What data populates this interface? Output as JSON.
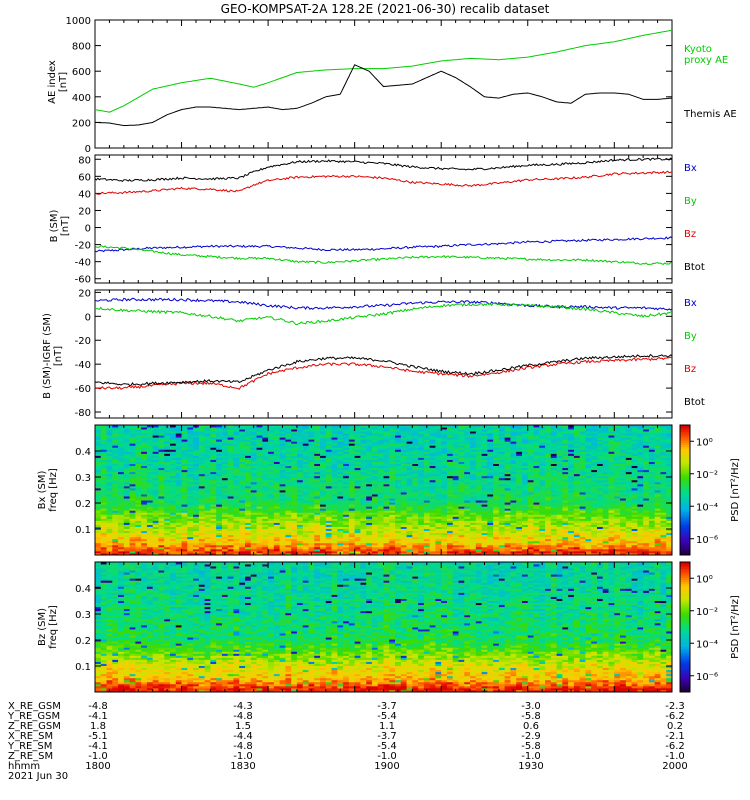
{
  "figure_title": "GEO-KOMPSAT-2A 128.2E (2021-06-30) recalib dataset",
  "colors": {
    "black": "#000000",
    "green": "#00cc00",
    "red": "#e00000",
    "blue": "#0000cc"
  },
  "chart_data": [
    {
      "type": "line",
      "panel": "ae-index",
      "ylabel": "AE index [nT]",
      "ylim": [
        0,
        1000
      ],
      "yticks": [
        0,
        200,
        400,
        600,
        800,
        1000
      ],
      "x_minutes_since_1800": true,
      "series": [
        {
          "name": "Kyoto proxy AE",
          "color": "#00cc00",
          "x": [
            0,
            5,
            10,
            20,
            30,
            40,
            50,
            55,
            60,
            70,
            80,
            90,
            100,
            110,
            120,
            130,
            140,
            150,
            160,
            170,
            180,
            190,
            200
          ],
          "y": [
            300,
            280,
            330,
            460,
            510,
            545,
            500,
            475,
            510,
            590,
            610,
            620,
            620,
            640,
            680,
            700,
            690,
            710,
            750,
            800,
            830,
            880,
            920
          ]
        },
        {
          "name": "Themis AE",
          "color": "#000000",
          "x": [
            0,
            5,
            10,
            15,
            20,
            25,
            30,
            35,
            40,
            45,
            50,
            60,
            65,
            70,
            75,
            80,
            85,
            90,
            95,
            100,
            105,
            110,
            115,
            120,
            125,
            130,
            135,
            140,
            145,
            150,
            155,
            160,
            165,
            170,
            175,
            180,
            185,
            190,
            195,
            200
          ],
          "y": [
            200,
            195,
            175,
            180,
            200,
            260,
            300,
            320,
            320,
            310,
            300,
            320,
            300,
            310,
            350,
            400,
            420,
            650,
            600,
            480,
            490,
            500,
            550,
            600,
            550,
            480,
            400,
            390,
            420,
            430,
            400,
            360,
            350,
            420,
            430,
            430,
            420,
            380,
            380,
            390
          ]
        }
      ]
    },
    {
      "type": "line",
      "panel": "b-sm",
      "ylabel": "B (SM) [nT]",
      "ylim": [
        -65,
        85
      ],
      "yticks": [
        -60,
        -40,
        -20,
        0,
        20,
        40,
        60,
        80
      ],
      "series": [
        {
          "name": "Bx",
          "color": "#0000cc",
          "x": [
            0,
            10,
            20,
            30,
            40,
            50,
            60,
            70,
            80,
            90,
            100,
            110,
            120,
            130,
            140,
            150,
            160,
            170,
            180,
            190,
            200
          ],
          "y": [
            -28,
            -26,
            -24,
            -23,
            -22,
            -22,
            -22,
            -24,
            -26,
            -26,
            -25,
            -23,
            -22,
            -20,
            -19,
            -17,
            -16,
            -15,
            -14,
            -13,
            -12
          ]
        },
        {
          "name": "By",
          "color": "#00cc00",
          "x": [
            0,
            10,
            20,
            30,
            40,
            50,
            60,
            70,
            80,
            90,
            100,
            110,
            120,
            130,
            140,
            150,
            160,
            170,
            180,
            190,
            200
          ],
          "y": [
            -22,
            -24,
            -28,
            -32,
            -34,
            -36,
            -36,
            -40,
            -41,
            -39,
            -37,
            -35,
            -34,
            -35,
            -36,
            -37,
            -38,
            -38,
            -40,
            -42,
            -42
          ]
        },
        {
          "name": "Bz",
          "color": "#e00000",
          "x": [
            0,
            10,
            20,
            30,
            40,
            50,
            55,
            60,
            70,
            80,
            90,
            100,
            110,
            120,
            130,
            140,
            150,
            160,
            170,
            180,
            190,
            200
          ],
          "y": [
            40,
            41,
            43,
            46,
            45,
            42,
            50,
            55,
            59,
            60,
            60,
            58,
            53,
            51,
            49,
            52,
            56,
            57,
            59,
            63,
            64,
            65
          ]
        },
        {
          "name": "Btot",
          "color": "#000000",
          "x": [
            0,
            10,
            20,
            30,
            40,
            50,
            55,
            60,
            70,
            80,
            90,
            100,
            110,
            120,
            130,
            140,
            150,
            160,
            170,
            180,
            190,
            200
          ],
          "y": [
            57,
            55,
            56,
            58,
            57,
            58,
            65,
            71,
            77,
            78,
            77,
            75,
            71,
            69,
            68,
            70,
            73,
            74,
            76,
            79,
            80,
            80
          ]
        }
      ]
    },
    {
      "type": "line",
      "panel": "b-sm-igrf",
      "ylabel": "B (SM)-IGRF (SM) [nT]",
      "ylim": [
        -85,
        22
      ],
      "yticks": [
        -80,
        -60,
        -40,
        -20,
        0,
        20
      ],
      "series": [
        {
          "name": "Bx",
          "color": "#0000cc",
          "x": [
            0,
            10,
            20,
            30,
            40,
            50,
            60,
            70,
            80,
            90,
            100,
            110,
            120,
            130,
            140,
            150,
            160,
            170,
            180,
            190,
            200
          ],
          "y": [
            13,
            14,
            14,
            14,
            13,
            12,
            9,
            7,
            7,
            8,
            9,
            11,
            12,
            12,
            11,
            9,
            8,
            8,
            7,
            7,
            6
          ]
        },
        {
          "name": "By",
          "color": "#00cc00",
          "x": [
            0,
            10,
            20,
            30,
            40,
            50,
            55,
            60,
            65,
            70,
            80,
            90,
            100,
            110,
            120,
            130,
            140,
            150,
            160,
            170,
            180,
            190,
            200
          ],
          "y": [
            7,
            5,
            4,
            3,
            0,
            -4,
            -2,
            -1,
            -3,
            -6,
            -4,
            -1,
            2,
            6,
            9,
            10,
            10,
            9,
            8,
            6,
            3,
            0,
            3
          ]
        },
        {
          "name": "Bz",
          "color": "#e00000",
          "x": [
            0,
            10,
            20,
            30,
            40,
            50,
            55,
            60,
            70,
            80,
            90,
            100,
            110,
            120,
            130,
            140,
            150,
            160,
            170,
            180,
            190,
            200
          ],
          "y": [
            -60,
            -60,
            -58,
            -56,
            -56,
            -60,
            -54,
            -48,
            -43,
            -40,
            -40,
            -42,
            -46,
            -48,
            -50,
            -47,
            -43,
            -40,
            -38,
            -37,
            -36,
            -35
          ]
        },
        {
          "name": "Btot",
          "color": "#000000",
          "x": [
            0,
            10,
            20,
            30,
            40,
            50,
            55,
            60,
            70,
            80,
            90,
            100,
            110,
            120,
            130,
            140,
            150,
            160,
            170,
            180,
            190,
            200
          ],
          "y": [
            -55,
            -57,
            -56,
            -55,
            -54,
            -55,
            -50,
            -45,
            -38,
            -35,
            -35,
            -37,
            -42,
            -46,
            -48,
            -45,
            -41,
            -38,
            -35,
            -34,
            -33,
            -33
          ]
        }
      ]
    },
    {
      "type": "heatmap",
      "panel": "bx-psd",
      "ylabel": "Bx (SM) freq [Hz]",
      "ylim": [
        0,
        0.5
      ],
      "yticks": [
        0.1,
        0.2,
        0.3,
        0.4
      ],
      "colorbar_label": "PSD [nT²/Hz]",
      "colorbar_ticks": [
        "10⁰",
        "10⁻²",
        "10⁻⁴",
        "10⁻⁶"
      ],
      "colorbar_tick_exponents": [
        0,
        -2,
        -4,
        -6
      ],
      "colorbar_range_exponent": [
        -7,
        1
      ],
      "freq_bands": [
        0.015,
        0.05,
        0.1,
        0.13,
        0.16,
        0.2,
        0.3,
        0.4,
        0.5
      ],
      "band_log_psd": [
        0.6,
        -0.5,
        -1.2,
        -1.6,
        -2.0,
        -2.8,
        -3.1,
        -3.3,
        -3.4
      ]
    },
    {
      "type": "heatmap",
      "panel": "bz-psd",
      "ylabel": "Bz (SM) freq [Hz]",
      "ylim": [
        0,
        0.5
      ],
      "yticks": [
        0.1,
        0.2,
        0.3,
        0.4
      ],
      "colorbar_label": "PSD [nT²/Hz]",
      "colorbar_ticks": [
        "10⁰",
        "10⁻²",
        "10⁻⁴",
        "10⁻⁶"
      ],
      "colorbar_tick_exponents": [
        0,
        -2,
        -4,
        -6
      ],
      "colorbar_range_exponent": [
        -7,
        1
      ],
      "freq_bands": [
        0.015,
        0.05,
        0.1,
        0.13,
        0.16,
        0.2,
        0.3,
        0.4,
        0.5
      ],
      "band_log_psd": [
        0.8,
        -0.3,
        -1.0,
        -1.5,
        -2.0,
        -2.7,
        -3.0,
        -3.2,
        -3.3
      ]
    }
  ],
  "orbit_table": {
    "row_labels": [
      "X_RE_GSM",
      "Y_RE_GSM",
      "Z_RE_GSM",
      "X_RE_SM",
      "Y_RE_SM",
      "Z_RE_SM",
      "hhmm"
    ],
    "columns": [
      [
        "-4.8",
        "-4.1",
        "1.8",
        "-5.1",
        "-4.1",
        "-1.0",
        "1800"
      ],
      [
        "-4.3",
        "-4.8",
        "1.5",
        "-4.4",
        "-4.8",
        "-1.0",
        "1830"
      ],
      [
        "-3.7",
        "-5.4",
        "1.1",
        "-3.7",
        "-5.4",
        "-1.0",
        "1900"
      ],
      [
        "-3.0",
        "-5.8",
        "0.6",
        "-2.9",
        "-5.8",
        "-1.0",
        "1930"
      ],
      [
        "-2.3",
        "-6.2",
        "0.2",
        "-2.1",
        "-6.2",
        "-1.0",
        "2000"
      ]
    ],
    "date_label": "2021 Jun 30"
  }
}
